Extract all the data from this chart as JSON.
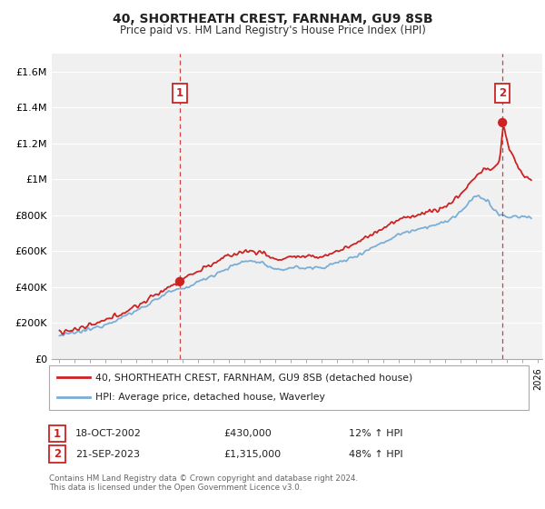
{
  "title": "40, SHORTHEATH CREST, FARNHAM, GU9 8SB",
  "subtitle": "Price paid vs. HM Land Registry's House Price Index (HPI)",
  "ylim": [
    0,
    1700000
  ],
  "yticks": [
    0,
    200000,
    400000,
    600000,
    800000,
    1000000,
    1200000,
    1400000,
    1600000
  ],
  "ytick_labels": [
    "£0",
    "£200K",
    "£400K",
    "£600K",
    "£800K",
    "£1M",
    "£1.2M",
    "£1.4M",
    "£1.6M"
  ],
  "hpi_color": "#7aaed6",
  "price_color": "#cc2222",
  "sale1_year": 2002.8,
  "sale1_price": 430000,
  "sale2_year": 2023.72,
  "sale2_price": 1315000,
  "legend_line1": "40, SHORTHEATH CREST, FARNHAM, GU9 8SB (detached house)",
  "legend_line2": "HPI: Average price, detached house, Waverley",
  "annot1_date": "18-OCT-2002",
  "annot1_price": "£430,000",
  "annot1_hpi": "12% ↑ HPI",
  "annot2_date": "21-SEP-2023",
  "annot2_price": "£1,315,000",
  "annot2_hpi": "48% ↑ HPI",
  "footer": "Contains HM Land Registry data © Crown copyright and database right 2024.\nThis data is licensed under the Open Government Licence v3.0.",
  "bg_color": "#f0f0f0",
  "grid_color": "#ffffff"
}
